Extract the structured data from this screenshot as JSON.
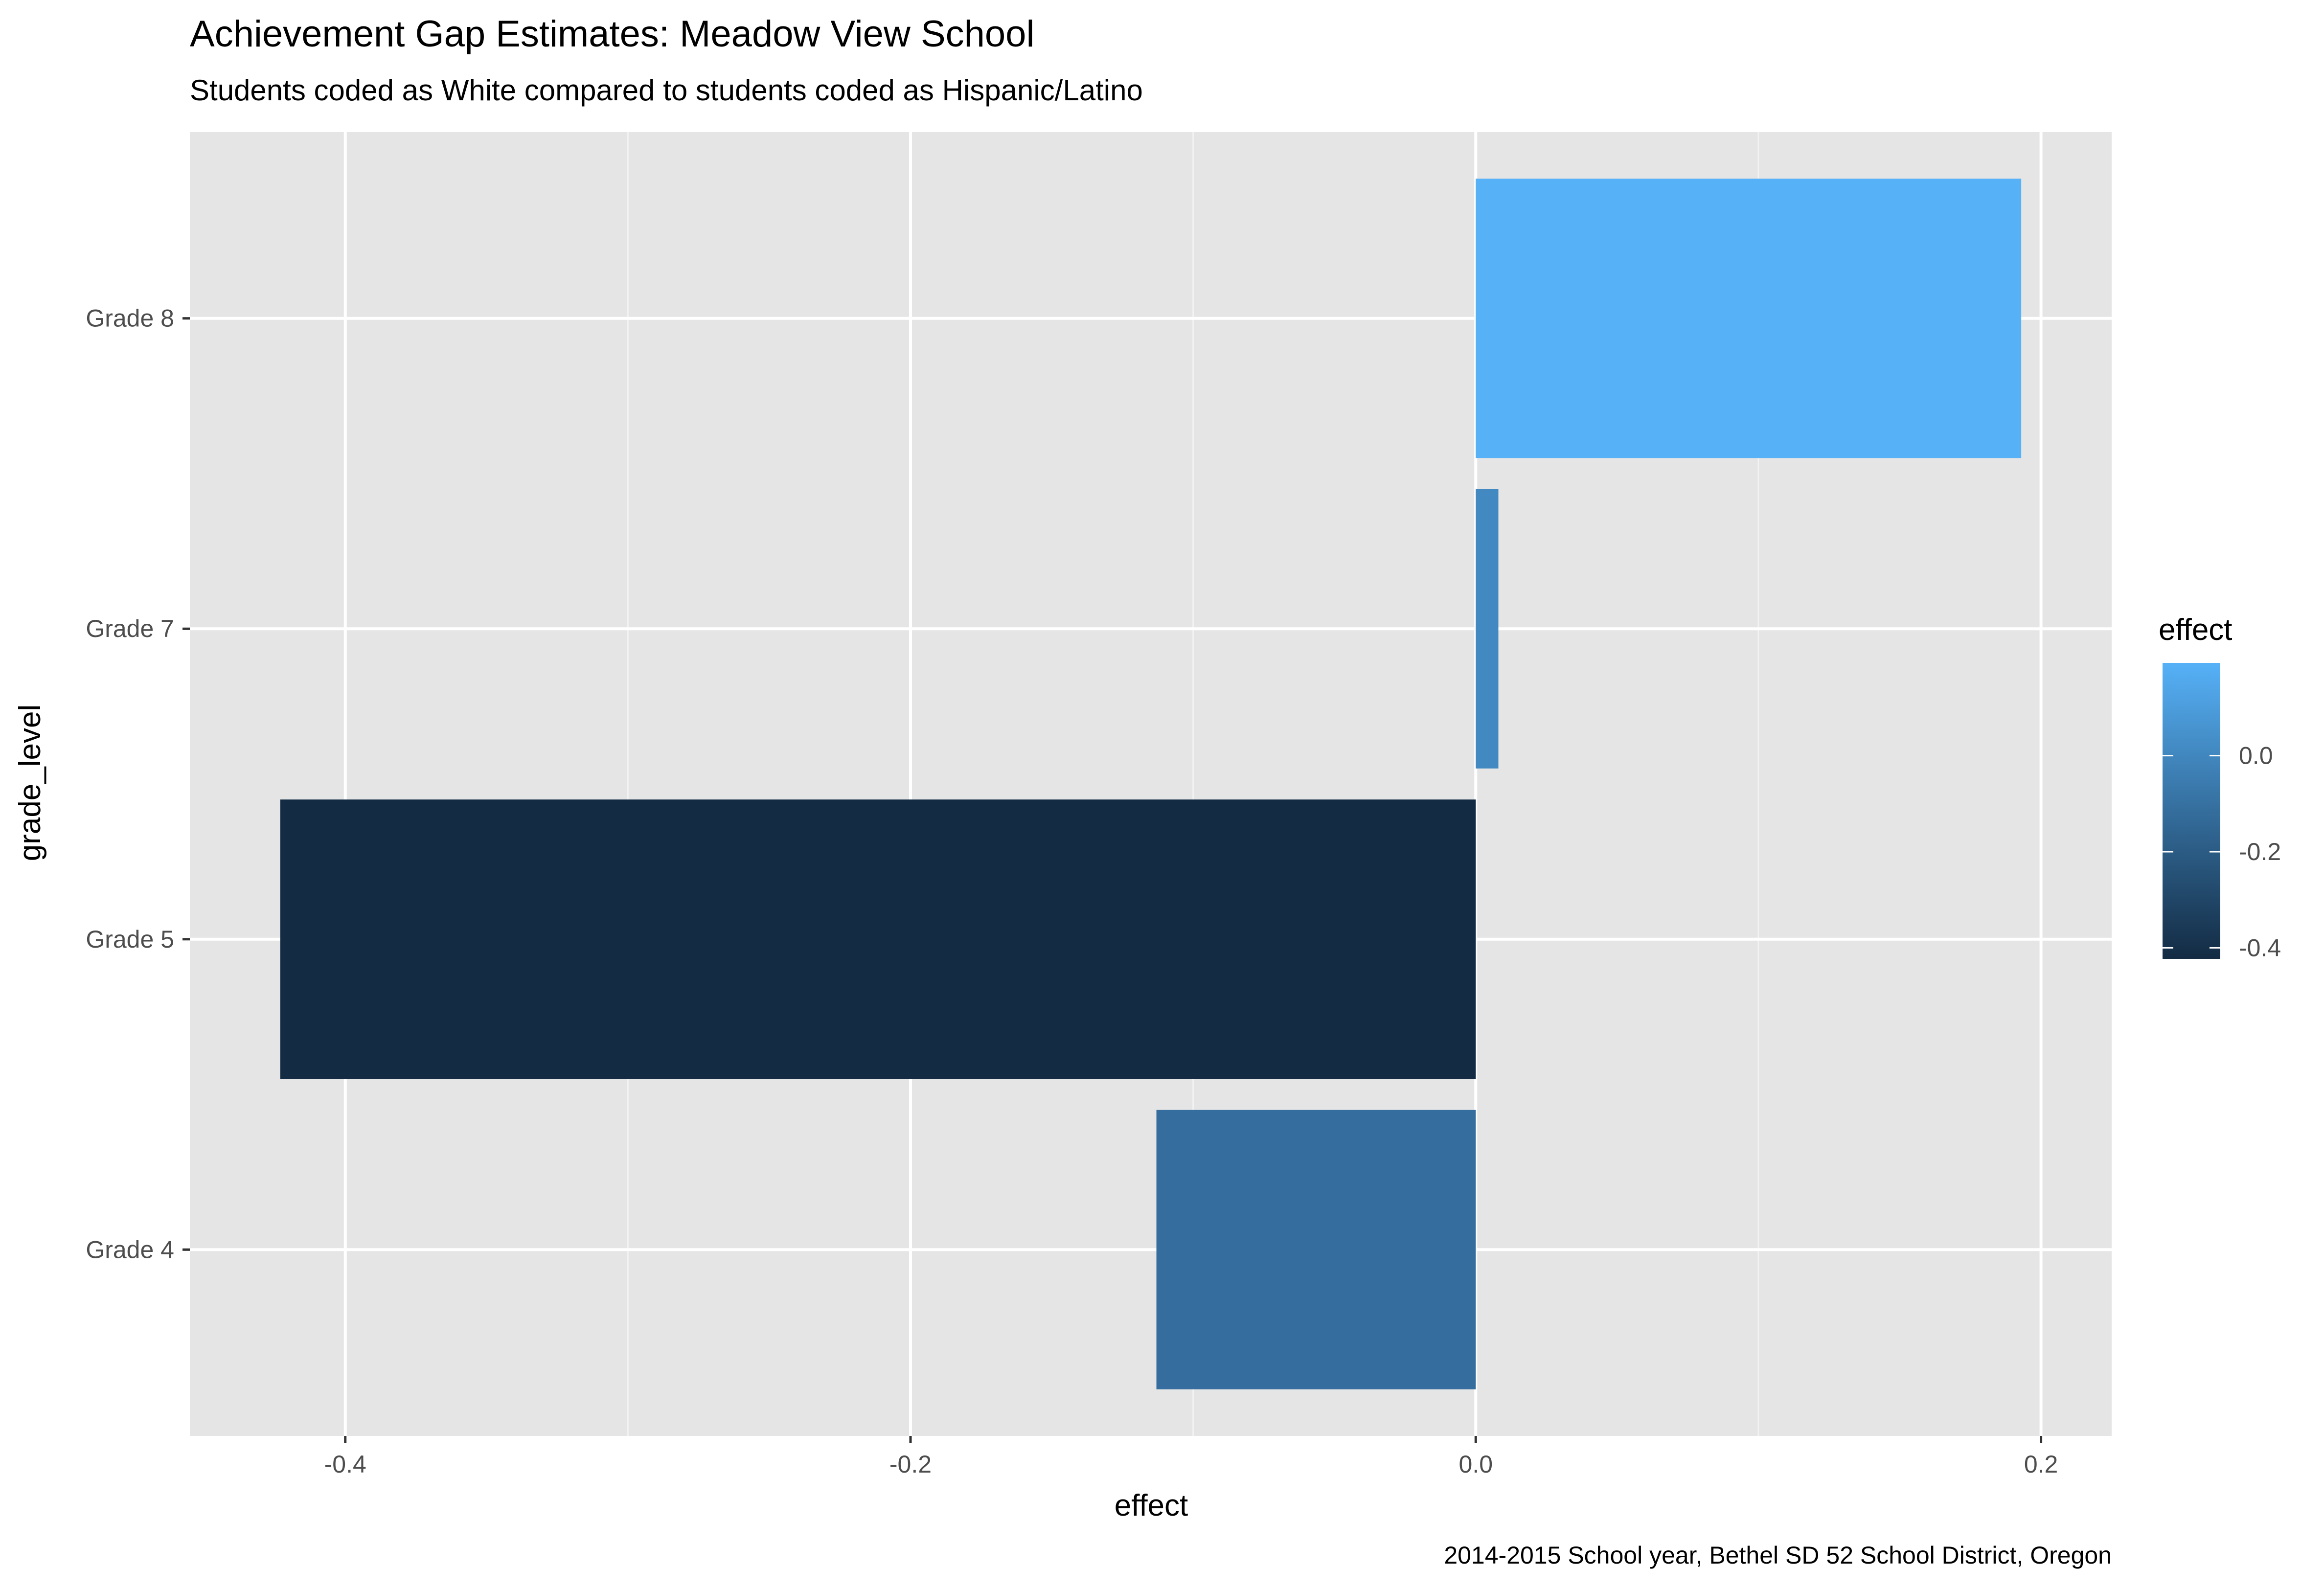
{
  "chart_data": {
    "type": "bar",
    "orientation": "horizontal",
    "title": "Achievement Gap Estimates: Meadow View School",
    "subtitle": "Students coded as White compared to students coded as Hispanic/Latino",
    "caption": "2014-2015 School year, Bethel SD 52 School District, Oregon",
    "xlabel": "effect",
    "ylabel": "grade_level",
    "categories": [
      "Grade 4",
      "Grade 5",
      "Grade 7",
      "Grade 8"
    ],
    "values": [
      -0.113,
      -0.423,
      0.008,
      0.193
    ],
    "xlim": [
      -0.455,
      0.225
    ],
    "x_ticks": [
      -0.4,
      -0.2,
      0.0,
      0.2
    ],
    "x_tick_labels": [
      "-0.4",
      "-0.2",
      "0.0",
      "0.2"
    ],
    "grid": true,
    "panel_background": "#e5e5e5",
    "legend": {
      "title": "effect",
      "position": "right",
      "type": "colorbar",
      "range": [
        -0.423,
        0.193
      ],
      "low_color": "#132b43",
      "high_color": "#56b1f7",
      "ticks": [
        0.0,
        -0.2,
        -0.4
      ],
      "tick_labels": [
        "0.0",
        "-0.2",
        "-0.4"
      ]
    }
  }
}
